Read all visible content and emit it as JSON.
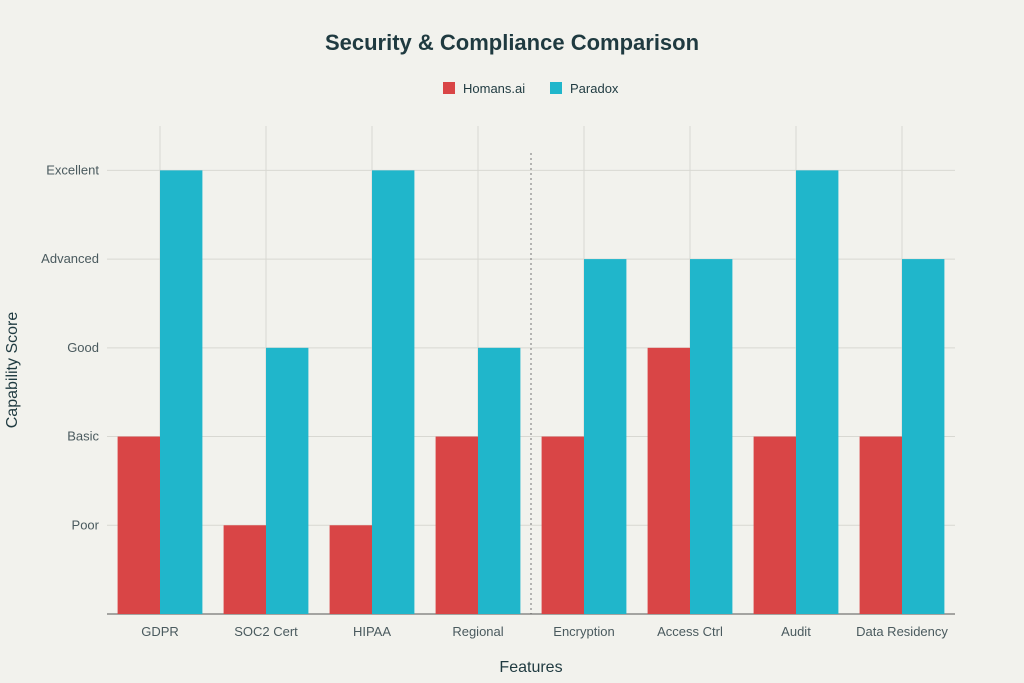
{
  "chart_data": {
    "type": "bar",
    "title": "Security & Compliance Comparison",
    "xlabel": "Features",
    "ylabel": "Capability Score",
    "categories": [
      "GDPR",
      "SOC2 Cert",
      "HIPAA",
      "Regional",
      "Encryption",
      "Access Ctrl",
      "Audit",
      "Data Residency"
    ],
    "y_tick_labels": [
      "Poor",
      "Basic",
      "Good",
      "Advanced",
      "Excellent"
    ],
    "y_tick_values": [
      1,
      2,
      3,
      4,
      5
    ],
    "ylim": [
      0,
      5.5
    ],
    "series": [
      {
        "name": "Homans.ai",
        "color": "#d94546",
        "values": [
          2,
          1,
          1,
          2,
          2,
          3,
          2,
          2
        ]
      },
      {
        "name": "Paradox",
        "color": "#20b6cb",
        "values": [
          5,
          3,
          5,
          3,
          4,
          4,
          5,
          4
        ]
      }
    ],
    "grid": true,
    "legend_position": "top-center",
    "divider_after_category": 3
  }
}
